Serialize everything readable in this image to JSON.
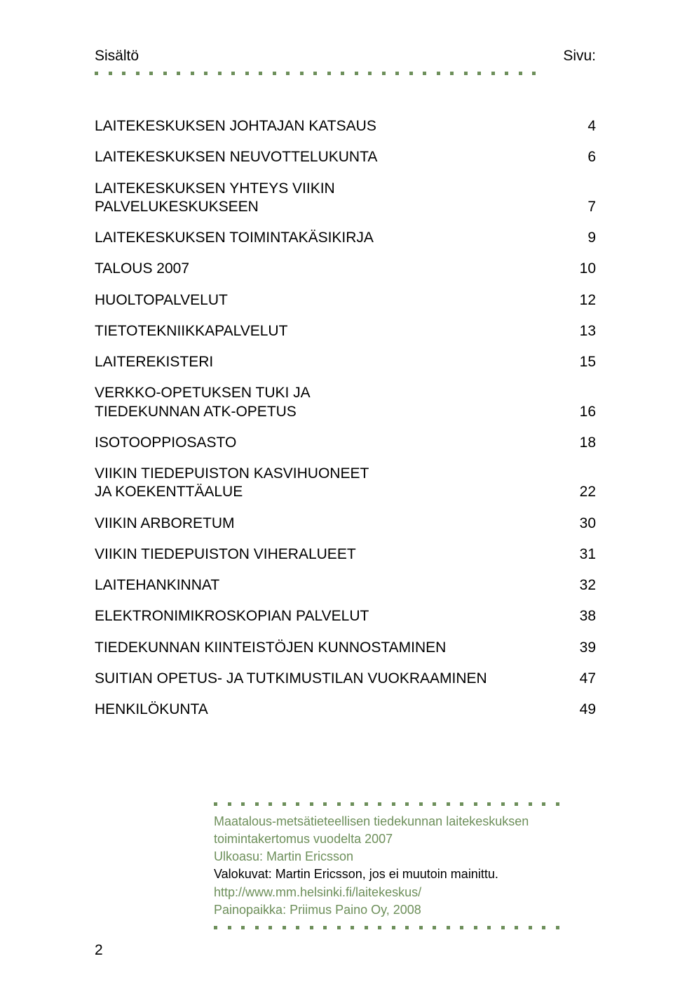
{
  "header": {
    "left": "Sisältö",
    "right": "Sivu:"
  },
  "dots": {
    "color": "#6d8f5a",
    "top_count": 33,
    "small_row_count": 26
  },
  "toc": [
    {
      "label": "LAITEKESKUKSEN JOHTAJAN KATSAUS",
      "page": "4"
    },
    {
      "label": "LAITEKESKUKSEN NEUVOTTELUKUNTA",
      "page": "6"
    },
    {
      "label": "LAITEKESKUKSEN YHTEYS VIIKIN\nPALVELUKESKUKSEEN",
      "page": "7"
    },
    {
      "label": "LAITEKESKUKSEN TOIMINTAKÄSIKIRJA",
      "page": "9"
    },
    {
      "label": "TALOUS 2007",
      "page": "10"
    },
    {
      "label": "HUOLTOPALVELUT",
      "page": "12"
    },
    {
      "label": "TIETOTEKNIIKKAPALVELUT",
      "page": "13"
    },
    {
      "label": "LAITEREKISTERI",
      "page": "15"
    },
    {
      "label": "VERKKO-OPETUKSEN TUKI JA\nTIEDEKUNNAN ATK-OPETUS",
      "page": "16"
    },
    {
      "label": "ISOTOOPPIOSASTO",
      "page": "18"
    },
    {
      "label": "VIIKIN TIEDEPUISTON KASVIHUONEET\nJA KOEKENTTÄALUE",
      "page": "22"
    },
    {
      "label": "VIIKIN ARBORETUM",
      "page": "30"
    },
    {
      "label": "VIIKIN TIEDEPUISTON VIHERALUEET",
      "page": "31"
    },
    {
      "label": "LAITEHANKINNAT",
      "page": "32"
    },
    {
      "label": "ELEKTRONIMIKROSKOPIAN PALVELUT",
      "page": "38"
    },
    {
      "label": "TIEDEKUNNAN KIINTEISTÖJEN KUNNOSTAMINEN",
      "page": "39"
    },
    {
      "label": "SUITIAN OPETUS- JA TUTKIMUSTILAN VUOKRAAMINEN",
      "page": "47"
    },
    {
      "label": "HENKILÖKUNTA",
      "page": "49"
    }
  ],
  "colophon": {
    "lines": [
      {
        "text": "Maatalous-metsätieteellisen tiedekunnan laitekeskuksen",
        "color": "#6d8f5a"
      },
      {
        "text": "toimintakertomus vuodelta 2007",
        "color": "#6d8f5a"
      },
      {
        "text": "Ulkoasu: Martin Ericsson",
        "color": "#6d8f5a"
      },
      {
        "text": "Valokuvat: Martin Ericsson, jos ei muutoin mainittu.",
        "color": "#000000"
      },
      {
        "text": "http://www.mm.helsinki.fi/laitekeskus/",
        "color": "#6d8f5a"
      },
      {
        "text": "Painopaikka: Priimus Paino Oy, 2008",
        "color": "#6d8f5a"
      }
    ]
  },
  "page_number": "2",
  "colors": {
    "accent": "#6d8f5a",
    "text": "#000000",
    "background": "#ffffff"
  },
  "typography": {
    "body_fontsize": 21,
    "colophon_fontsize": 18,
    "font_family": "Arial"
  }
}
